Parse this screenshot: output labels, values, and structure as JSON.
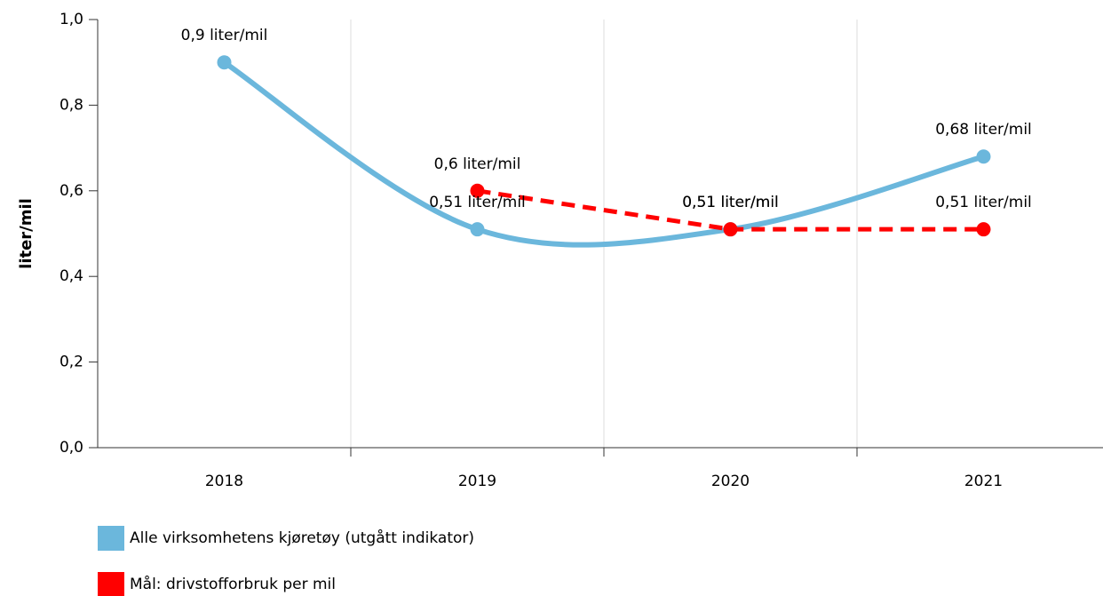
{
  "chart_data": {
    "type": "line",
    "y_label": "liter/mil",
    "categories": [
      "2018",
      "2019",
      "2020",
      "2021"
    ],
    "series": [
      {
        "name": "Alle virksomhetens kjøretøy (utgått indikator)",
        "color": "#6bb7dc",
        "smooth": true,
        "dashed": false,
        "values": [
          0.9,
          0.51,
          0.51,
          0.68
        ],
        "value_labels": [
          "0,9 liter/mil",
          "0,51 liter/mil",
          "0,51 liter/mil",
          "0,68 liter/mil"
        ]
      },
      {
        "name": "Mål: drivstofforbruk per mil",
        "color": "#ff0000",
        "smooth": false,
        "dashed": true,
        "values": [
          null,
          0.6,
          0.51,
          0.51
        ],
        "value_labels": [
          null,
          "0,6 liter/mil",
          "0,51 liter/mil",
          "0,51 liter/mil"
        ]
      }
    ],
    "ylim": [
      0,
      1
    ],
    "yticks": [
      {
        "value": 0,
        "label": "0,0"
      },
      {
        "value": 0.2,
        "label": "0,2"
      },
      {
        "value": 0.4,
        "label": "0,4"
      },
      {
        "value": 0.6,
        "label": "0,6"
      },
      {
        "value": 0.8,
        "label": "0,8"
      },
      {
        "value": 1,
        "label": "1,0"
      }
    ],
    "grid": true
  }
}
